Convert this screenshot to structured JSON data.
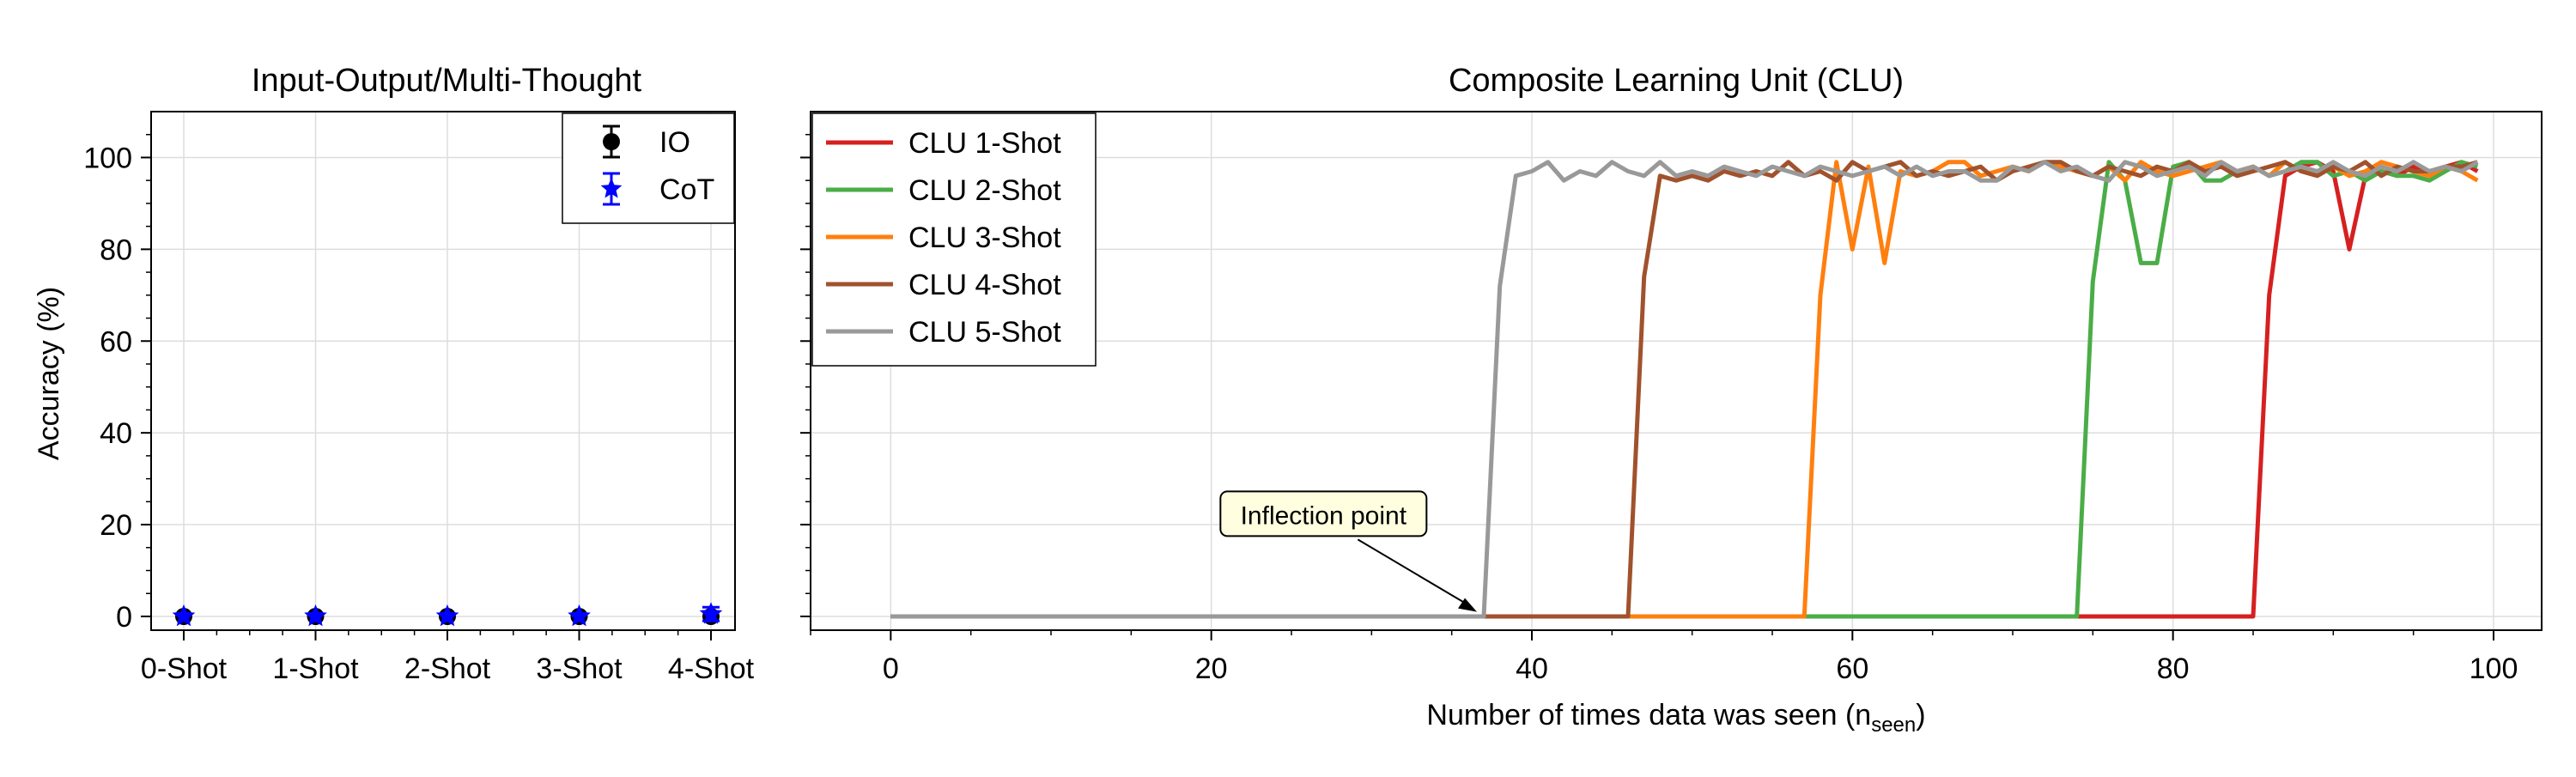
{
  "chart_data": [
    {
      "type": "scatter",
      "title": "Input-Output/Multi-Thought",
      "ylabel": "Accuracy (%)",
      "xlabel": "",
      "categories": [
        "0-Shot",
        "1-Shot",
        "2-Shot",
        "3-Shot",
        "4-Shot"
      ],
      "ylim": [
        -3,
        110
      ],
      "yticks": [
        0,
        20,
        40,
        60,
        80,
        100
      ],
      "yticklabels": [
        "0",
        "20",
        "40",
        "60",
        "80",
        "100"
      ],
      "grid": true,
      "legend_position": "upper right",
      "series": [
        {
          "name": "IO",
          "color": "#000000",
          "marker": "circle",
          "values": [
            0,
            0,
            0,
            0,
            0
          ],
          "errors": [
            0,
            0,
            0,
            0,
            0
          ]
        },
        {
          "name": "CoT",
          "color": "#0000ff",
          "marker": "star",
          "values": [
            0,
            0,
            0,
            0,
            0.5
          ],
          "errors": [
            0,
            0,
            0,
            0,
            1.5
          ]
        }
      ]
    },
    {
      "type": "line",
      "title": "Composite Learning Unit (CLU)",
      "xlabel": "Number of times data was seen (n",
      "xlabel_sub": "seen",
      "xlabel_end": ")",
      "ylabel": "",
      "xlim": [
        -5,
        103
      ],
      "ylim": [
        -3,
        110
      ],
      "xticks": [
        0,
        20,
        40,
        60,
        80,
        100
      ],
      "xticklabels": [
        "0",
        "20",
        "40",
        "60",
        "80",
        "100"
      ],
      "yticks": [
        0,
        20,
        40,
        60,
        80,
        100
      ],
      "grid": true,
      "legend_position": "upper left",
      "annotation": {
        "text": "Inflection point",
        "point": [
          37,
          1
        ],
        "text_pos": [
          27,
          22
        ]
      },
      "series": [
        {
          "name": "CLU 1-Shot",
          "color": "#d62020",
          "x": [
            0,
            85,
            86,
            87,
            88,
            89,
            90,
            91,
            92,
            93,
            94,
            95,
            96,
            97,
            98,
            99
          ],
          "values": [
            0,
            0,
            70,
            96,
            98,
            99,
            97,
            80,
            96,
            97,
            96,
            98,
            97,
            98,
            99,
            97
          ]
        },
        {
          "name": "CLU 2-Shot",
          "color": "#4aad47",
          "x": [
            0,
            74,
            75,
            76,
            77,
            78,
            79,
            80,
            81,
            82,
            83,
            84,
            85,
            86,
            87,
            88,
            89,
            90,
            91,
            92,
            93,
            94,
            95,
            96,
            97,
            98,
            99
          ],
          "values": [
            0,
            0,
            73,
            99,
            95,
            77,
            77,
            98,
            99,
            95,
            95,
            97,
            98,
            96,
            97,
            99,
            99,
            96,
            97,
            95,
            97,
            96,
            96,
            95,
            97,
            99,
            98
          ]
        },
        {
          "name": "CLU 3-Shot",
          "color": "#ff7f0e",
          "x": [
            0,
            57,
            58,
            59,
            60,
            61,
            62,
            63,
            64,
            65,
            66,
            67,
            68,
            69,
            70,
            71,
            72,
            73,
            74,
            75,
            76,
            77,
            78,
            79,
            80,
            81,
            82,
            83,
            84,
            85,
            86,
            87,
            88,
            89,
            90,
            91,
            92,
            93,
            94,
            95,
            96,
            97,
            98,
            99
          ],
          "values": [
            0,
            0,
            70,
            99,
            80,
            98,
            77,
            97,
            96,
            97,
            99,
            99,
            96,
            97,
            98,
            97,
            99,
            98,
            97,
            96,
            98,
            95,
            99,
            97,
            96,
            97,
            98,
            99,
            97,
            98,
            96,
            99,
            97,
            97,
            98,
            96,
            97,
            99,
            98,
            97,
            96,
            98,
            97,
            95
          ]
        },
        {
          "name": "CLU 4-Shot",
          "color": "#a0522d",
          "x": [
            0,
            46,
            47,
            48,
            49,
            50,
            51,
            52,
            53,
            54,
            55,
            56,
            57,
            58,
            59,
            60,
            61,
            62,
            63,
            64,
            65,
            66,
            67,
            68,
            69,
            70,
            71,
            72,
            73,
            74,
            75,
            76,
            77,
            78,
            79,
            80,
            81,
            82,
            83,
            84,
            85,
            86,
            87,
            88,
            89,
            90,
            91,
            92,
            93,
            94,
            95,
            96,
            97,
            98,
            99
          ],
          "values": [
            0,
            0,
            74,
            96,
            95,
            96,
            95,
            97,
            96,
            97,
            96,
            99,
            96,
            97,
            95,
            99,
            97,
            98,
            99,
            96,
            97,
            96,
            97,
            98,
            95,
            97,
            98,
            99,
            99,
            97,
            96,
            98,
            97,
            96,
            98,
            97,
            99,
            97,
            98,
            96,
            97,
            98,
            99,
            97,
            96,
            98,
            97,
            99,
            96,
            98,
            97,
            97,
            98,
            98,
            99
          ]
        },
        {
          "name": "CLU 5-Shot",
          "color": "#999999",
          "x": [
            0,
            37,
            38,
            39,
            40,
            41,
            42,
            43,
            44,
            45,
            46,
            47,
            48,
            49,
            50,
            51,
            52,
            53,
            54,
            55,
            56,
            57,
            58,
            59,
            60,
            61,
            62,
            63,
            64,
            65,
            66,
            67,
            68,
            69,
            70,
            71,
            72,
            73,
            74,
            75,
            76,
            77,
            78,
            79,
            80,
            81,
            82,
            83,
            84,
            85,
            86,
            87,
            88,
            89,
            90,
            91,
            92,
            93,
            94,
            95,
            96,
            97,
            98,
            99
          ],
          "values": [
            0,
            0,
            72,
            96,
            97,
            99,
            95,
            97,
            96,
            99,
            97,
            96,
            99,
            96,
            97,
            96,
            98,
            97,
            96,
            98,
            97,
            96,
            98,
            97,
            96,
            97,
            98,
            96,
            98,
            96,
            97,
            97,
            95,
            95,
            98,
            97,
            99,
            97,
            98,
            96,
            95,
            99,
            98,
            96,
            97,
            98,
            96,
            99,
            97,
            98,
            96,
            97,
            98,
            97,
            99,
            97,
            96,
            98,
            97,
            99,
            97,
            98,
            97,
            99
          ]
        }
      ]
    }
  ]
}
